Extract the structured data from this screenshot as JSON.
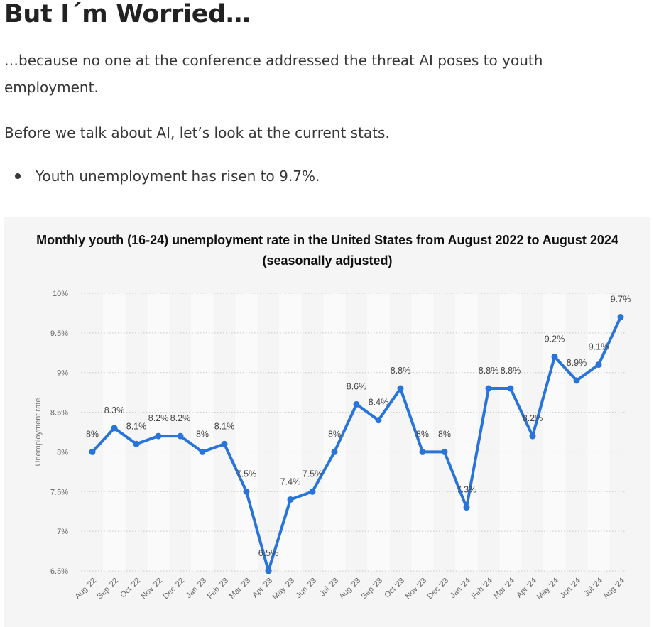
{
  "article": {
    "heading": "But I´m Worried…",
    "paragraph1": "…because no one at the conference addressed the threat AI poses to youth employment.",
    "paragraph2": "Before we talk about AI, let’s look at the current stats.",
    "bullets": [
      "Youth unemployment has risen to 9.7%."
    ]
  },
  "chart_data": {
    "type": "line",
    "title": "Monthly youth (16-24) unemployment rate in the United States from August 2022 to August 2024 (seasonally adjusted)",
    "xlabel": "",
    "ylabel": "Unemployment rate",
    "categories": [
      "Aug '22",
      "Sep '22",
      "Oct '22",
      "Nov '22",
      "Dec '22",
      "Jan '23",
      "Feb '23",
      "Mar '23",
      "Apr '23",
      "May '23",
      "Jun '23",
      "Jul '23",
      "Aug '23",
      "Sep '23",
      "Oct '23",
      "Nov '23",
      "Dec '23",
      "Jan '24",
      "Feb '24",
      "Mar '24",
      "Apr '24",
      "May '24",
      "Jun '24",
      "Jul '24",
      "Aug '24"
    ],
    "series": [
      {
        "values": [
          8.0,
          8.3,
          8.1,
          8.2,
          8.2,
          8.0,
          8.1,
          7.5,
          6.5,
          7.4,
          7.5,
          8.0,
          8.6,
          8.4,
          8.8,
          8.0,
          8.0,
          7.3,
          8.8,
          8.8,
          8.2,
          9.2,
          8.9,
          9.1,
          9.7
        ],
        "labels": [
          "8%",
          "8.3%",
          "8.1%",
          "8.2%",
          "8.2%",
          "8%",
          "8.1%",
          "7.5%",
          "6.5%",
          "7.4%",
          "7.5%",
          "8%",
          "8.6%",
          "8.4%",
          "8.8%",
          "8%",
          "8%",
          "7.3%",
          "8.8%",
          "8.8%",
          "8.2%",
          "9.2%",
          "8.9%",
          "9.1%",
          "9.7%"
        ]
      }
    ],
    "yticks": [
      6.5,
      7,
      7.5,
      8,
      8.5,
      9,
      9.5,
      10
    ],
    "ytick_labels": [
      "6.5%",
      "7%",
      "7.5%",
      "8%",
      "8.5%",
      "9%",
      "9.5%",
      "10%"
    ],
    "ylim": [
      6.5,
      10
    ],
    "grid": "horizontal dotted",
    "line_color": "#2874d8",
    "background": "#f5f5f5"
  }
}
